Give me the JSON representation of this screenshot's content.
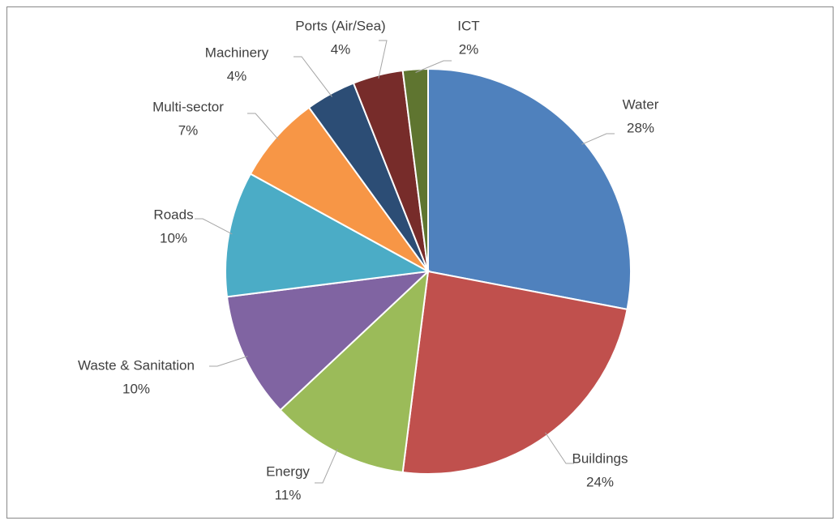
{
  "chart_data": {
    "type": "pie",
    "categories": [
      "Water",
      "Buildings",
      "Energy",
      "Waste & Sanitation",
      "Roads",
      "Multi-sector",
      "Machinery",
      "Ports (Air/Sea)",
      "ICT"
    ],
    "values": [
      28,
      24,
      11,
      10,
      10,
      7,
      4,
      4,
      2
    ],
    "value_labels": [
      "28%",
      "24%",
      "11%",
      "10%",
      "10%",
      "7%",
      "4%",
      "4%",
      "2%"
    ],
    "colors": [
      "#4f81bd",
      "#c0504d",
      "#9bbb59",
      "#8064a2",
      "#4bacc6",
      "#f79646",
      "#2c4d75",
      "#772c2a",
      "#5f7530"
    ]
  }
}
